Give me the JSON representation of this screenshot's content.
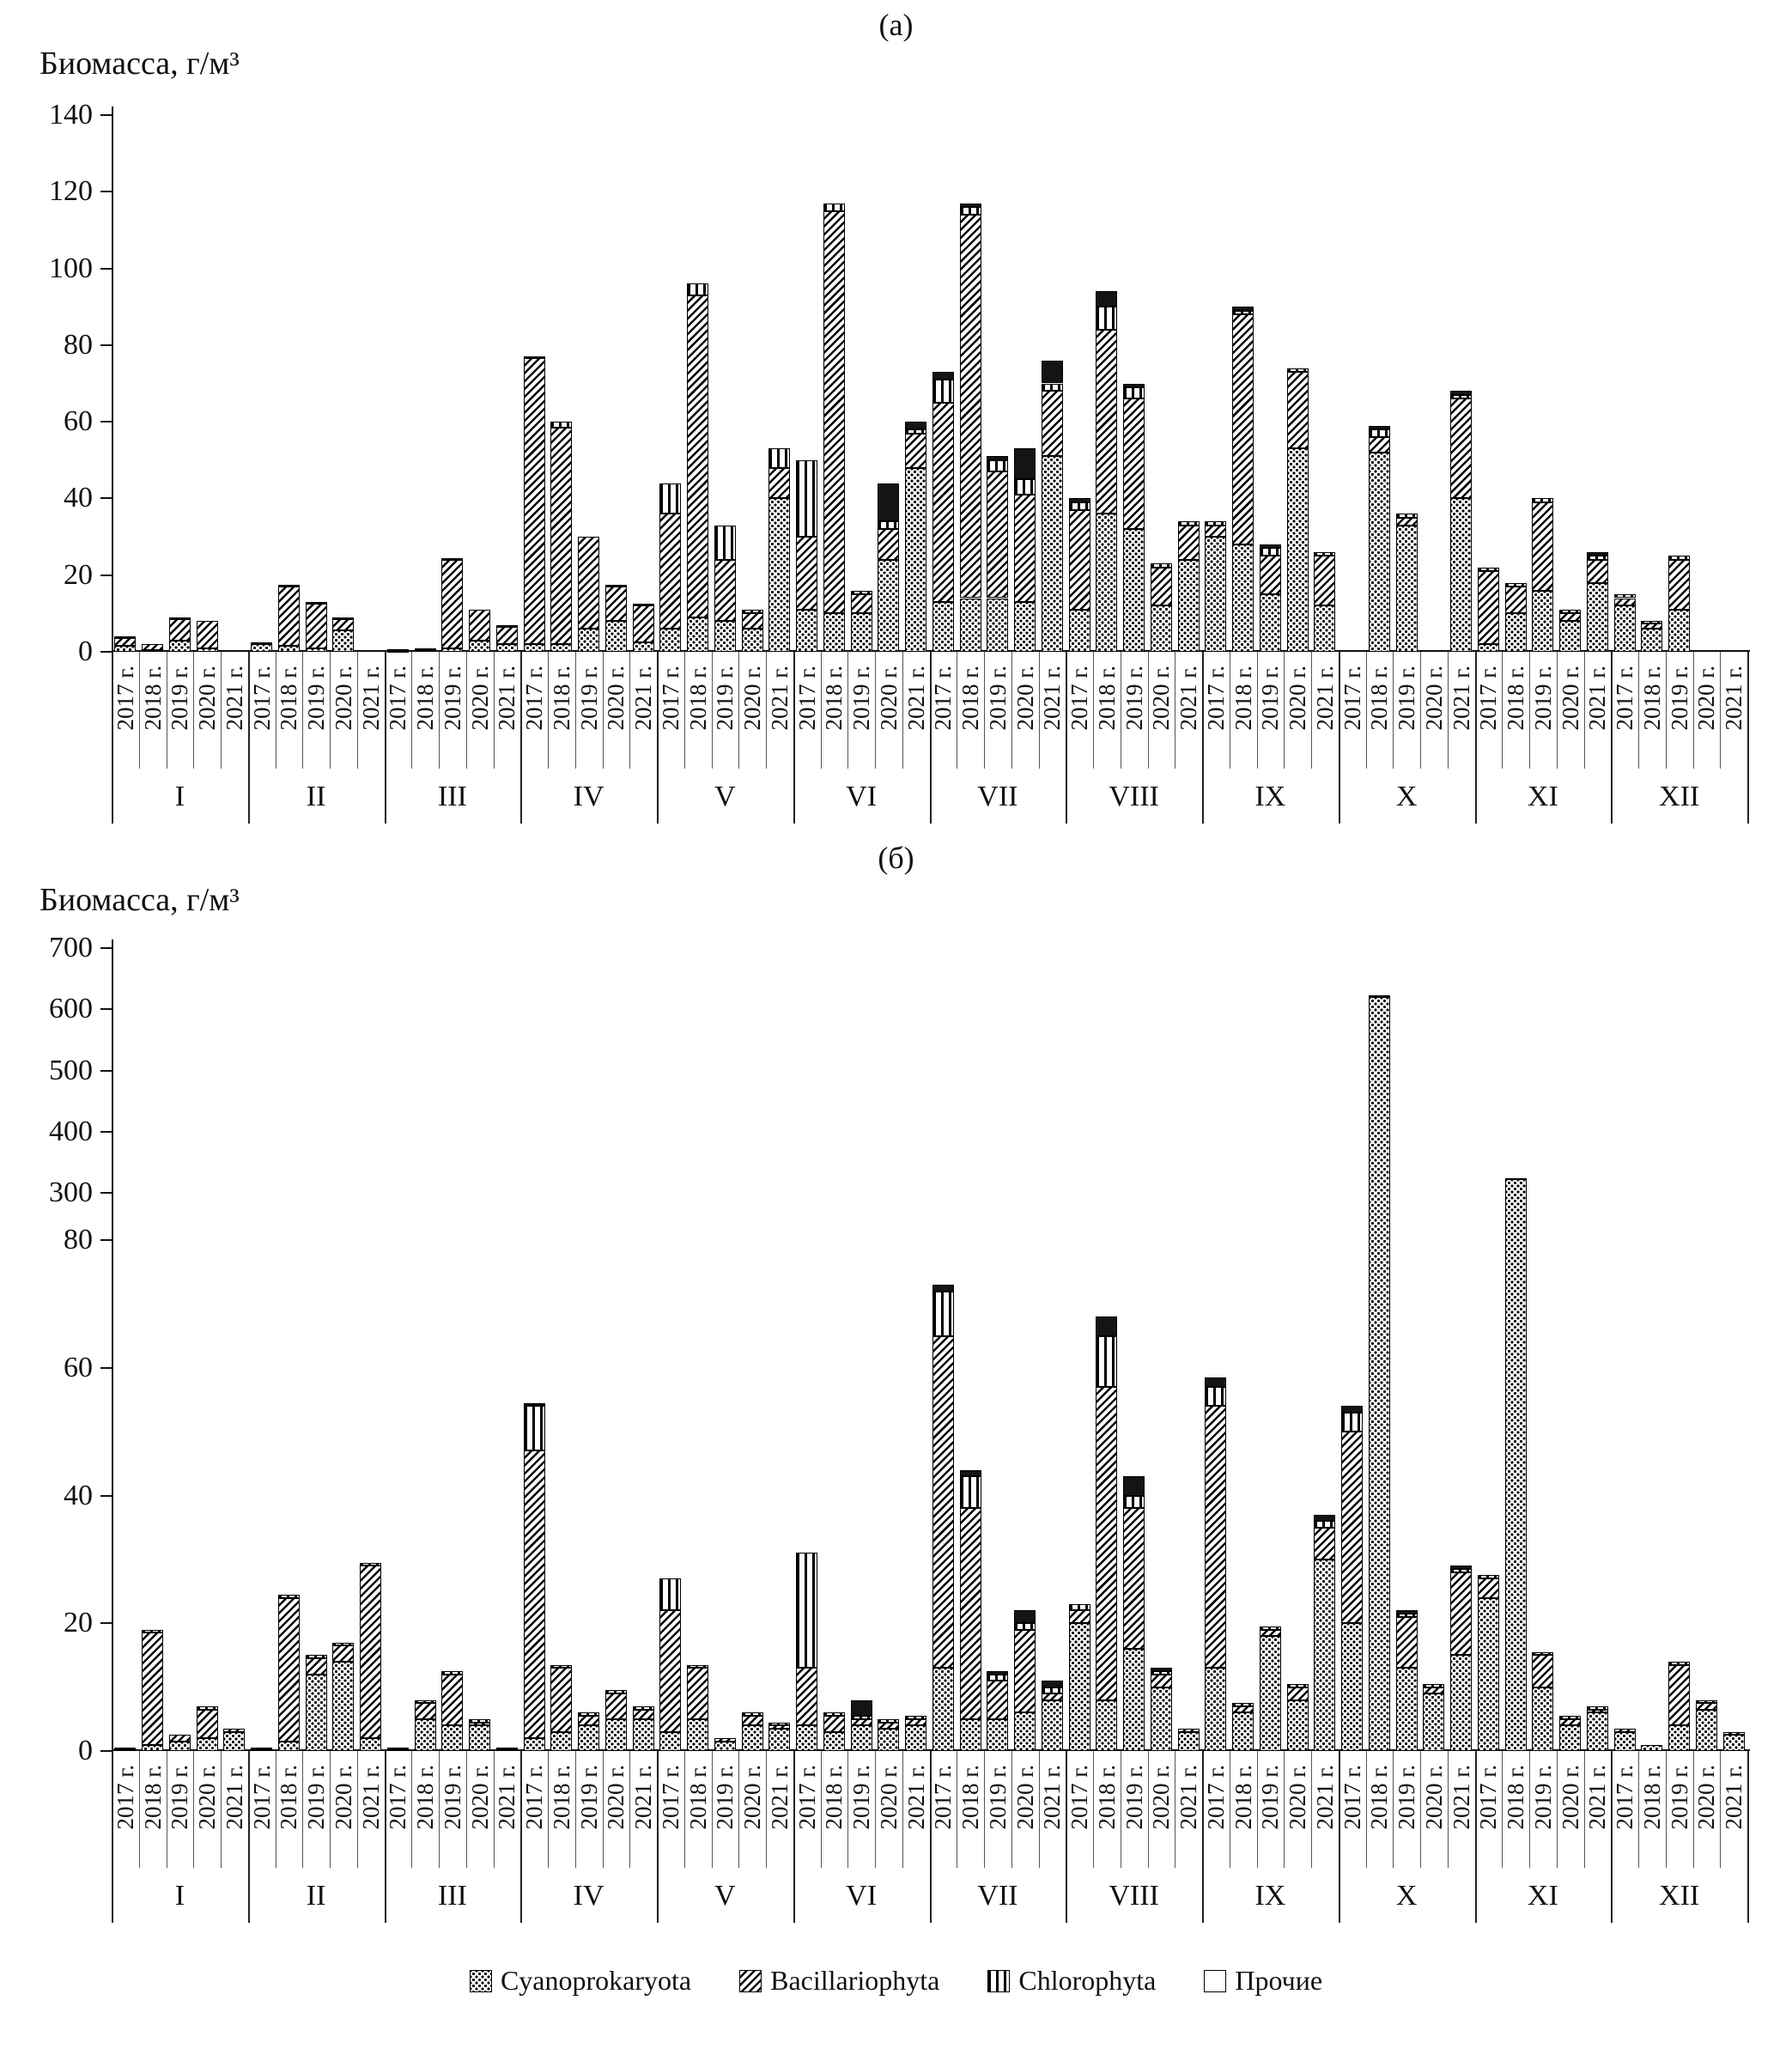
{
  "legend": {
    "items": [
      {
        "label": "Cyanoprokaryota",
        "pattern": "dots"
      },
      {
        "label": "Bacillariophyta",
        "pattern": "diag"
      },
      {
        "label": "Chlorophyta",
        "pattern": "vert"
      },
      {
        "label": "Прочие",
        "pattern": "solid"
      }
    ]
  },
  "chart_data": [
    {
      "id": "a",
      "type": "bar",
      "stacked": true,
      "panel_label": "(а)",
      "ylabel": "Биомасса, г/м³",
      "ylim": [
        0,
        140
      ],
      "yticks": [
        0,
        20,
        40,
        60,
        80,
        100,
        120,
        140
      ],
      "grid": false,
      "categories_months": [
        "I",
        "II",
        "III",
        "IV",
        "V",
        "VI",
        "VII",
        "VIII",
        "IX",
        "X",
        "XI",
        "XII"
      ],
      "categories_years": [
        "2017 г.",
        "2018 г.",
        "2019 г.",
        "2020 г.",
        "2021 г."
      ],
      "series": [
        "Cyanoprokaryota",
        "Bacillariophyta",
        "Chlorophyta",
        "Прочие"
      ],
      "bars": [
        [
          [
            1.5,
            2,
            0,
            0.5
          ],
          [
            0.5,
            1.5,
            0,
            0
          ],
          [
            3,
            5.5,
            0.5,
            0
          ],
          [
            1,
            7,
            0,
            0
          ],
          [
            0,
            0,
            0,
            0
          ]
        ],
        [
          [
            2,
            0.5,
            0,
            0
          ],
          [
            1.5,
            15.5,
            0.5,
            0
          ],
          [
            1,
            11.5,
            0.5,
            0
          ],
          [
            5.5,
            3,
            0,
            0.5
          ],
          [
            0,
            0,
            0,
            0
          ]
        ],
        [
          [
            0.3,
            0.4,
            0,
            0
          ],
          [
            0.5,
            0.5,
            0,
            0
          ],
          [
            1,
            23,
            0.5,
            0
          ],
          [
            3,
            8,
            0,
            0
          ],
          [
            2,
            4.5,
            0.5,
            0
          ]
        ],
        [
          [
            2,
            74.5,
            0.5,
            0
          ],
          [
            2,
            56.5,
            1.5,
            0
          ],
          [
            6,
            24,
            0,
            0
          ],
          [
            8,
            9,
            0.5,
            0
          ],
          [
            2.5,
            9.5,
            0.5,
            0
          ]
        ],
        [
          [
            6,
            30,
            8,
            0
          ],
          [
            9,
            84,
            3,
            0
          ],
          [
            8,
            16,
            9,
            0
          ],
          [
            6,
            4,
            1,
            0
          ],
          [
            40,
            8,
            5,
            0
          ]
        ],
        [
          [
            11,
            19,
            20,
            0
          ],
          [
            10,
            105,
            2,
            0
          ],
          [
            10,
            5,
            1,
            0
          ],
          [
            24,
            8,
            2,
            10
          ],
          [
            48,
            9,
            1,
            2
          ]
        ],
        [
          [
            13,
            52,
            6,
            2
          ],
          [
            14,
            100,
            2,
            1
          ],
          [
            14,
            33,
            3,
            1
          ],
          [
            13,
            28,
            4,
            8
          ],
          [
            51,
            17,
            2,
            6
          ]
        ],
        [
          [
            11,
            26,
            2,
            1
          ],
          [
            36,
            48,
            6,
            4
          ],
          [
            32,
            34,
            3,
            1
          ],
          [
            12,
            10,
            1,
            0
          ],
          [
            24,
            9,
            1,
            0
          ]
        ],
        [
          [
            30,
            3,
            1,
            0
          ],
          [
            28,
            60,
            1,
            1
          ],
          [
            15,
            10,
            2,
            1
          ],
          [
            53,
            20,
            1,
            0
          ],
          [
            12,
            13,
            1,
            0
          ]
        ],
        [
          [
            0,
            0,
            0,
            0
          ],
          [
            52,
            4,
            2,
            1
          ],
          [
            33,
            2,
            1,
            0
          ],
          [
            0,
            0,
            0,
            0
          ],
          [
            40,
            26,
            1,
            1
          ]
        ],
        [
          [
            2,
            19,
            1,
            0
          ],
          [
            10,
            7,
            1,
            0
          ],
          [
            16,
            23,
            1,
            0
          ],
          [
            8,
            2,
            1,
            0
          ],
          [
            18,
            6,
            1,
            1
          ]
        ],
        [
          [
            12,
            2,
            1,
            0
          ],
          [
            6,
            1.5,
            0.5,
            0
          ],
          [
            11,
            13,
            1,
            0
          ],
          [
            0,
            0,
            0,
            0
          ],
          [
            0,
            0,
            0,
            0
          ]
        ]
      ]
    },
    {
      "id": "b",
      "type": "bar",
      "stacked": true,
      "panel_label": "(б)",
      "ylabel": "Биомасса, г/м³",
      "ylim": [
        0,
        700
      ],
      "axis_break": {
        "lower_max": 80,
        "upper_min": 300
      },
      "yticks_lower": [
        0,
        20,
        40,
        60,
        80
      ],
      "yticks_upper": [
        300,
        400,
        500,
        600,
        700
      ],
      "grid": false,
      "categories_months": [
        "I",
        "II",
        "III",
        "IV",
        "V",
        "VI",
        "VII",
        "VIII",
        "IX",
        "X",
        "XI",
        "XII"
      ],
      "categories_years": [
        "2017 г.",
        "2018 г.",
        "2019 г.",
        "2020 г.",
        "2021 г."
      ],
      "series": [
        "Cyanoprokaryota",
        "Bacillariophyta",
        "Chlorophyta",
        "Прочие"
      ],
      "bars": [
        [
          [
            0.3,
            0.2,
            0,
            0
          ],
          [
            1,
            17.5,
            0.5,
            0
          ],
          [
            1.5,
            1,
            0,
            0
          ],
          [
            2,
            4.5,
            0.5,
            0
          ],
          [
            3,
            0.5,
            0,
            0
          ]
        ],
        [
          [
            0.3,
            0.2,
            0,
            0
          ],
          [
            1.5,
            22.5,
            0.5,
            0
          ],
          [
            12,
            2.5,
            0.5,
            0
          ],
          [
            14,
            2.5,
            0.5,
            0
          ],
          [
            2,
            27,
            0.5,
            0
          ]
        ],
        [
          [
            0.3,
            0.2,
            0,
            0
          ],
          [
            5,
            2.5,
            0.5,
            0
          ],
          [
            4,
            8,
            0.5,
            0
          ],
          [
            4,
            0.5,
            0.5,
            0
          ],
          [
            0.3,
            0.2,
            0,
            0
          ]
        ],
        [
          [
            2,
            45,
            7,
            0.5
          ],
          [
            3,
            10,
            0.5,
            0
          ],
          [
            4,
            1.5,
            0.5,
            0
          ],
          [
            5,
            4,
            0.5,
            0
          ],
          [
            5,
            1.5,
            0.5,
            0
          ]
        ],
        [
          [
            3,
            19,
            5,
            0
          ],
          [
            5,
            8,
            0.5,
            0
          ],
          [
            1.5,
            0.5,
            0,
            0
          ],
          [
            4,
            1.5,
            0.5,
            0
          ],
          [
            3.5,
            0.5,
            0.5,
            0
          ]
        ],
        [
          [
            4,
            9,
            18,
            0
          ],
          [
            3,
            2.5,
            0.5,
            0
          ],
          [
            4,
            1,
            0.5,
            2.5
          ],
          [
            3.5,
            1,
            0.5,
            0
          ],
          [
            4,
            1,
            0.5,
            0
          ]
        ],
        [
          [
            13,
            52,
            7,
            1
          ],
          [
            5,
            33,
            5,
            1
          ],
          [
            5,
            6,
            1,
            0.5
          ],
          [
            6,
            13,
            1,
            2
          ],
          [
            8,
            1,
            1,
            1
          ]
        ],
        [
          [
            20,
            2,
            1,
            0
          ],
          [
            8,
            49,
            8,
            3
          ],
          [
            16,
            22,
            2,
            3
          ],
          [
            10,
            2,
            0.5,
            0.5
          ],
          [
            3,
            0.5,
            0,
            0
          ]
        ],
        [
          [
            13,
            41,
            3,
            1.5
          ],
          [
            6,
            1,
            0.5,
            0
          ],
          [
            18,
            1,
            0.5,
            0
          ],
          [
            8,
            2,
            0.5,
            0
          ],
          [
            30,
            5,
            1,
            1
          ]
        ],
        [
          [
            20,
            30,
            3,
            1
          ],
          [
            620,
            3,
            1,
            1
          ],
          [
            13,
            8,
            0.5,
            0.5
          ],
          [
            9,
            1,
            0.5,
            0
          ],
          [
            15,
            13,
            0.5,
            0.5
          ]
        ],
        [
          [
            24,
            3,
            0.5,
            0
          ],
          [
            322,
            2,
            0.5,
            0.5
          ],
          [
            10,
            5,
            0.5,
            0
          ],
          [
            4,
            1,
            0.5,
            0
          ],
          [
            6,
            0.5,
            0.5,
            0
          ]
        ],
        [
          [
            3,
            0.5,
            0,
            0
          ],
          [
            1,
            0,
            0,
            0
          ],
          [
            4,
            9.5,
            0.5,
            0
          ],
          [
            6.5,
            1,
            0.5,
            0
          ],
          [
            2.5,
            0.5,
            0,
            0
          ]
        ]
      ]
    }
  ]
}
